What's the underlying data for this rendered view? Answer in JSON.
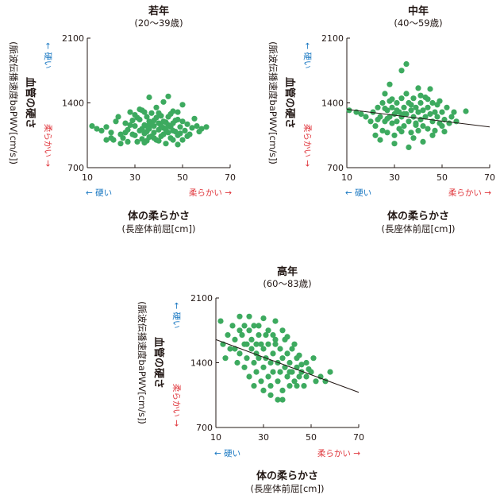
{
  "chart_data": [
    {
      "type": "scatter",
      "title": "若年",
      "subtitle": "(20〜39歳)",
      "xlabel": "体の柔らかさ",
      "xlabel_sub": "(長座体前屈[cm])",
      "ylabel": "血管の硬さ",
      "ylabel_sub": "(脈波伝播速度baPWV[cm/s])",
      "x_ticks": [
        "10",
        "30",
        "50",
        "70"
      ],
      "y_ticks": [
        "700",
        "1400",
        "2100"
      ],
      "xlim": [
        10,
        70
      ],
      "ylim": [
        700,
        2100
      ],
      "y_arrow_up": "硬い",
      "y_arrow_down": "柔らかい",
      "x_arrow_left": "硬い",
      "x_arrow_right": "柔らかい",
      "trend": null,
      "points": [
        [
          12,
          1150
        ],
        [
          14,
          1120
        ],
        [
          16,
          1100
        ],
        [
          18,
          1140
        ],
        [
          20,
          1080
        ],
        [
          21,
          1000
        ],
        [
          22,
          1200
        ],
        [
          23,
          1250
        ],
        [
          24,
          960
        ],
        [
          25,
          1020
        ],
        [
          26,
          1180
        ],
        [
          27,
          1110
        ],
        [
          28,
          1300
        ],
        [
          29,
          1060
        ],
        [
          30,
          1150
        ],
        [
          30,
          1050
        ],
        [
          31,
          980
        ],
        [
          32,
          1220
        ],
        [
          32,
          1100
        ],
        [
          33,
          1320
        ],
        [
          33,
          1010
        ],
        [
          34,
          1160
        ],
        [
          34,
          1070
        ],
        [
          35,
          1250
        ],
        [
          35,
          990
        ],
        [
          36,
          1120
        ],
        [
          36,
          1200
        ],
        [
          37,
          1040
        ],
        [
          37,
          1290
        ],
        [
          38,
          1150
        ],
        [
          38,
          1080
        ],
        [
          39,
          1350
        ],
        [
          39,
          1000
        ],
        [
          40,
          1180
        ],
        [
          40,
          1110
        ],
        [
          41,
          1260
        ],
        [
          41,
          1040
        ],
        [
          42,
          1410
        ],
        [
          42,
          1130
        ],
        [
          43,
          1190
        ],
        [
          43,
          960
        ],
        [
          44,
          1080
        ],
        [
          44,
          1250
        ],
        [
          45,
          1140
        ],
        [
          45,
          1020
        ],
        [
          46,
          1310
        ],
        [
          46,
          1180
        ],
        [
          47,
          1090
        ],
        [
          48,
          1220
        ],
        [
          48,
          1050
        ],
        [
          49,
          1140
        ],
        [
          50,
          1000
        ],
        [
          50,
          1200
        ],
        [
          51,
          1100
        ],
        [
          52,
          1170
        ],
        [
          53,
          1060
        ],
        [
          54,
          1130
        ],
        [
          55,
          1230
        ],
        [
          56,
          1150
        ],
        [
          57,
          1090
        ],
        [
          58,
          1120
        ],
        [
          60,
          1140
        ],
        [
          26,
          1080
        ],
        [
          28,
          1160
        ],
        [
          31,
          1240
        ],
        [
          34,
          1300
        ],
        [
          36,
          1030
        ],
        [
          38,
          1210
        ],
        [
          40,
          990
        ],
        [
          42,
          1060
        ],
        [
          44,
          1160
        ],
        [
          46,
          1100
        ],
        [
          48,
          1300
        ],
        [
          50,
          1380
        ],
        [
          52,
          1040
        ],
        [
          27,
          980
        ],
        [
          29,
          1210
        ],
        [
          33,
          1120
        ],
        [
          35,
          1090
        ],
        [
          37,
          1170
        ],
        [
          39,
          1240
        ],
        [
          41,
          1150
        ],
        [
          43,
          1110
        ],
        [
          45,
          1280
        ],
        [
          47,
          1210
        ],
        [
          49,
          1070
        ],
        [
          36,
          1460
        ],
        [
          44,
          1470
        ],
        [
          32,
          1330
        ],
        [
          40,
          1290
        ],
        [
          35,
          1150
        ],
        [
          38,
          1020
        ],
        [
          42,
          1200
        ],
        [
          46,
          1000
        ],
        [
          30,
          1270
        ],
        [
          24,
          1060
        ],
        [
          20,
          1020
        ],
        [
          18,
          1000
        ],
        [
          34,
          970
        ],
        [
          48,
          950
        ]
      ]
    },
    {
      "type": "scatter",
      "title": "中年",
      "subtitle": "(40〜59歳)",
      "xlabel": "体の柔らかさ",
      "xlabel_sub": "(長座体前屈[cm])",
      "ylabel": "血管の硬さ",
      "ylabel_sub": "(脈波伝播速度baPWV[cm/s])",
      "x_ticks": [
        "10",
        "30",
        "50",
        "70"
      ],
      "y_ticks": [
        "700",
        "1400",
        "2100"
      ],
      "xlim": [
        10,
        70
      ],
      "ylim": [
        700,
        2100
      ],
      "y_arrow_up": "硬い",
      "y_arrow_down": "柔らかい",
      "x_arrow_left": "硬い",
      "x_arrow_right": "柔らかい",
      "trend": [
        [
          10,
          1330
        ],
        [
          70,
          1140
        ]
      ],
      "points": [
        [
          11,
          1320
        ],
        [
          14,
          1300
        ],
        [
          16,
          1280
        ],
        [
          18,
          1250
        ],
        [
          20,
          1200
        ],
        [
          21,
          1300
        ],
        [
          22,
          1150
        ],
        [
          23,
          1350
        ],
        [
          24,
          1250
        ],
        [
          25,
          1100
        ],
        [
          25,
          1400
        ],
        [
          26,
          1200
        ],
        [
          26,
          1500
        ],
        [
          27,
          1320
        ],
        [
          27,
          1080
        ],
        [
          28,
          1250
        ],
        [
          28,
          1420
        ],
        [
          29,
          1180
        ],
        [
          29,
          1350
        ],
        [
          30,
          1280
        ],
        [
          30,
          1050
        ],
        [
          31,
          1400
        ],
        [
          31,
          1200
        ],
        [
          32,
          1300
        ],
        [
          32,
          1120
        ],
        [
          33,
          1450
        ],
        [
          33,
          1250
        ],
        [
          34,
          1350
        ],
        [
          34,
          1150
        ],
        [
          35,
          1500
        ],
        [
          35,
          1280
        ],
        [
          35,
          1820
        ],
        [
          36,
          1200
        ],
        [
          36,
          1400
        ],
        [
          37,
          1320
        ],
        [
          37,
          1080
        ],
        [
          38,
          1250
        ],
        [
          38,
          1450
        ],
        [
          39,
          1180
        ],
        [
          39,
          1350
        ],
        [
          40,
          1300
        ],
        [
          40,
          1100
        ],
        [
          41,
          1400
        ],
        [
          41,
          1220
        ],
        [
          42,
          1320
        ],
        [
          42,
          1150
        ],
        [
          43,
          1460
        ],
        [
          43,
          1250
        ],
        [
          44,
          1350
        ],
        [
          44,
          1120
        ],
        [
          45,
          1280
        ],
        [
          45,
          1550
        ],
        [
          46,
          1200
        ],
        [
          46,
          1400
        ],
        [
          47,
          1300
        ],
        [
          47,
          1100
        ],
        [
          48,
          1250
        ],
        [
          48,
          1380
        ],
        [
          49,
          1180
        ],
        [
          50,
          1300
        ],
        [
          50,
          1150
        ],
        [
          51,
          1220
        ],
        [
          52,
          1350
        ],
        [
          53,
          1180
        ],
        [
          54,
          1250
        ],
        [
          55,
          1300
        ],
        [
          56,
          1200
        ],
        [
          60,
          1310
        ],
        [
          33,
          1750
        ],
        [
          28,
          1600
        ],
        [
          40,
          1560
        ],
        [
          24,
          1000
        ],
        [
          36,
          920
        ],
        [
          30,
          960
        ],
        [
          42,
          980
        ],
        [
          38,
          1020
        ],
        [
          22,
          1050
        ],
        [
          46,
          1050
        ],
        [
          34,
          1280
        ],
        [
          37,
          1380
        ],
        [
          41,
          1480
        ],
        [
          44,
          1440
        ],
        [
          29,
          1440
        ],
        [
          31,
          1320
        ],
        [
          27,
          1230
        ],
        [
          49,
          1420
        ],
        [
          51,
          1090
        ],
        [
          39,
          1160
        ],
        [
          33,
          1090
        ],
        [
          26,
          1340
        ],
        [
          23,
          1220
        ]
      ]
    },
    {
      "type": "scatter",
      "title": "高年",
      "subtitle": "(60〜83歳)",
      "xlabel": "体の柔らかさ",
      "xlabel_sub": "(長座体前屈[cm])",
      "ylabel": "血管の硬さ",
      "ylabel_sub": "(脈波伝播速度baPWV[cm/s])",
      "x_ticks": [
        "10",
        "30",
        "50",
        "70"
      ],
      "y_ticks": [
        "700",
        "1400",
        "2100"
      ],
      "xlim": [
        10,
        70
      ],
      "ylim": [
        700,
        2100
      ],
      "y_arrow_up": "硬い",
      "y_arrow_down": "柔らかい",
      "x_arrow_left": "硬い",
      "x_arrow_right": "柔らかい",
      "trend": [
        [
          10,
          1650
        ],
        [
          70,
          1080
        ]
      ],
      "points": [
        [
          12,
          1850
        ],
        [
          13,
          1600
        ],
        [
          14,
          1450
        ],
        [
          15,
          1700
        ],
        [
          16,
          1550
        ],
        [
          17,
          1800
        ],
        [
          18,
          1650
        ],
        [
          19,
          1400
        ],
        [
          20,
          1900
        ],
        [
          20,
          1500
        ],
        [
          21,
          1700
        ],
        [
          22,
          1350
        ],
        [
          22,
          1800
        ],
        [
          23,
          1600
        ],
        [
          23,
          1450
        ],
        [
          24,
          1750
        ],
        [
          24,
          1250
        ],
        [
          25,
          1550
        ],
        [
          25,
          1650
        ],
        [
          26,
          1400
        ],
        [
          26,
          1800
        ],
        [
          27,
          1500
        ],
        [
          27,
          1300
        ],
        [
          28,
          1700
        ],
        [
          28,
          1450
        ],
        [
          29,
          1600
        ],
        [
          29,
          1200
        ],
        [
          30,
          1550
        ],
        [
          30,
          1350
        ],
        [
          31,
          1700
        ],
        [
          31,
          1450
        ],
        [
          32,
          1250
        ],
        [
          32,
          1600
        ],
        [
          33,
          1400
        ],
        [
          33,
          1150
        ],
        [
          34,
          1500
        ],
        [
          34,
          1300
        ],
        [
          35,
          1650
        ],
        [
          35,
          1850
        ],
        [
          36,
          1400
        ],
        [
          36,
          1200
        ],
        [
          37,
          1550
        ],
        [
          37,
          1300
        ],
        [
          38,
          1450
        ],
        [
          38,
          1100
        ],
        [
          39,
          1350
        ],
        [
          39,
          1650
        ],
        [
          40,
          1250
        ],
        [
          40,
          1500
        ],
        [
          41,
          1400
        ],
        [
          41,
          1150
        ],
        [
          42,
          1300
        ],
        [
          42,
          1550
        ],
        [
          43,
          1200
        ],
        [
          44,
          1350
        ],
        [
          44,
          1450
        ],
        [
          45,
          1250
        ],
        [
          46,
          1300
        ],
        [
          47,
          1150
        ],
        [
          48,
          1400
        ],
        [
          48,
          1250
        ],
        [
          50,
          1300
        ],
        [
          52,
          1200
        ],
        [
          54,
          1250
        ],
        [
          56,
          1200
        ],
        [
          58,
          1300
        ],
        [
          36,
          1000
        ],
        [
          33,
          1050
        ],
        [
          38,
          1000
        ],
        [
          30,
          1100
        ],
        [
          26,
          1150
        ],
        [
          20,
          1750
        ],
        [
          18,
          1550
        ],
        [
          24,
          1900
        ],
        [
          28,
          1800
        ],
        [
          32,
          1750
        ],
        [
          35,
          1600
        ],
        [
          40,
          1680
        ],
        [
          43,
          1600
        ],
        [
          45,
          1480
        ],
        [
          38,
          1750
        ],
        [
          34,
          1700
        ],
        [
          30,
          1880
        ],
        [
          22,
          1600
        ],
        [
          27,
          1600
        ],
        [
          41,
          1300
        ],
        [
          46,
          1380
        ],
        [
          49,
          1330
        ],
        [
          51,
          1450
        ],
        [
          44,
          1150
        ]
      ]
    }
  ]
}
